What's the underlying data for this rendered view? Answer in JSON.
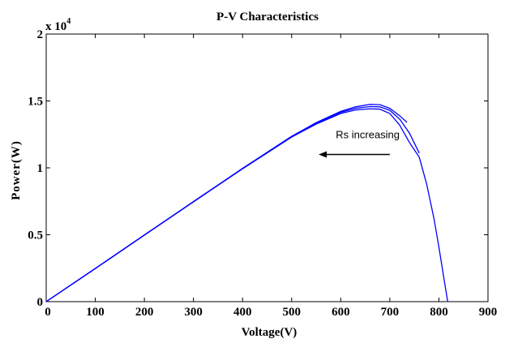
{
  "chart_data": {
    "type": "line",
    "title": "P-V Characteristics",
    "xlabel": "Voltage(V)",
    "ylabel": "Power(W)",
    "xlim": [
      0,
      900
    ],
    "ylim": [
      0,
      20000
    ],
    "x_ticks": [
      0,
      100,
      200,
      300,
      400,
      500,
      600,
      700,
      800,
      900
    ],
    "y_ticks": [
      0,
      5000,
      10000,
      15000,
      20000
    ],
    "y_tick_labels": [
      "0",
      "0.5",
      "1",
      "1.5",
      "2"
    ],
    "y_multiplier_base": "x 10",
    "y_multiplier_exp": "4",
    "grid": false,
    "line_color": "#0000ff",
    "annotation": {
      "text": "Rs increasing",
      "arrow_from": [
        700,
        11000
      ],
      "arrow_to": [
        555,
        11000
      ]
    },
    "series": [
      {
        "x": [
          0,
          100,
          200,
          300,
          400,
          500,
          550,
          600,
          630,
          660,
          680,
          700,
          720,
          735
        ],
        "y": [
          0,
          2480,
          4980,
          7480,
          9960,
          12360,
          13380,
          14220,
          14560,
          14750,
          14720,
          14450,
          13900,
          13400
        ]
      },
      {
        "x": [
          0,
          100,
          200,
          300,
          400,
          500,
          550,
          600,
          630,
          660,
          680,
          700,
          720,
          740,
          760
        ],
        "y": [
          0,
          2480,
          4980,
          7470,
          9950,
          12340,
          13330,
          14150,
          14450,
          14580,
          14560,
          14300,
          13650,
          12600,
          11100
        ]
      },
      {
        "x": [
          0,
          100,
          200,
          300,
          400,
          500,
          550,
          600,
          630,
          660,
          680,
          700,
          720,
          740,
          760,
          775,
          790,
          800,
          810,
          818
        ],
        "y": [
          0,
          2470,
          4970,
          7460,
          9930,
          12300,
          13270,
          14060,
          14330,
          14420,
          14380,
          14060,
          13200,
          11900,
          10800,
          8800,
          6200,
          4100,
          1800,
          0
        ]
      }
    ]
  }
}
